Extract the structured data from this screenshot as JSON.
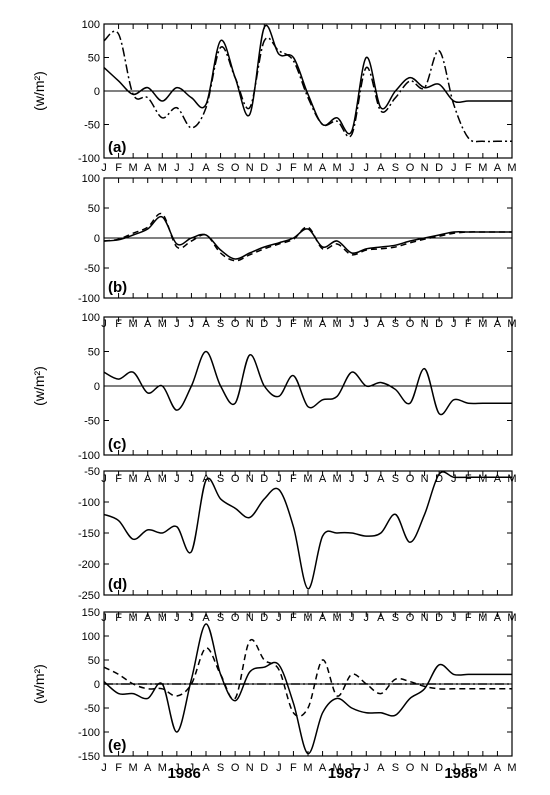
{
  "chart_data": {
    "type": "line",
    "months": [
      "J",
      "F",
      "M",
      "A",
      "M",
      "J",
      "J",
      "A",
      "S",
      "O",
      "N",
      "D",
      "J",
      "F",
      "M",
      "A",
      "M",
      "J",
      "J",
      "A",
      "S",
      "O",
      "N",
      "D",
      "J",
      "F",
      "M",
      "A",
      "M"
    ],
    "years": [
      {
        "label": "1986",
        "month_index": 5.5
      },
      {
        "label": "1987",
        "month_index": 16.5
      },
      {
        "label": "1988",
        "month_index": 24.5
      }
    ],
    "ylabel": "(w/m²)",
    "panels": [
      {
        "tag": "(a)",
        "ylim": [
          -100,
          100
        ],
        "yticks": [
          100,
          50,
          0,
          -50,
          -100
        ],
        "series": [
          {
            "style": "solid",
            "values": [
              35,
              15,
              -5,
              5,
              -15,
              5,
              -10,
              -20,
              75,
              20,
              -35,
              95,
              55,
              50,
              -5,
              -50,
              -40,
              -60,
              50,
              -25,
              0,
              20,
              5,
              10,
              -15,
              -15,
              -15,
              -15,
              -15
            ]
          },
          {
            "style": "dashdot",
            "values": [
              75,
              85,
              -5,
              -10,
              -40,
              -25,
              -55,
              -25,
              65,
              20,
              -25,
              75,
              60,
              45,
              -10,
              -50,
              -45,
              -65,
              35,
              -30,
              -10,
              15,
              5,
              60,
              -20,
              -70,
              -75,
              -75,
              -75
            ]
          }
        ]
      },
      {
        "tag": "(b)",
        "ylim": [
          -100,
          100
        ],
        "yticks": [
          100,
          50,
          0,
          -50,
          -100
        ],
        "series": [
          {
            "style": "solid",
            "values": [
              -5,
              -3,
              5,
              15,
              35,
              -10,
              0,
              5,
              -20,
              -35,
              -25,
              -15,
              -8,
              0,
              15,
              -15,
              -5,
              -25,
              -18,
              -15,
              -12,
              -5,
              0,
              5,
              10,
              10,
              10,
              10,
              10
            ]
          },
          {
            "style": "dashed",
            "values": [
              -5,
              -2,
              8,
              18,
              40,
              -15,
              -5,
              5,
              -25,
              -38,
              -28,
              -18,
              -10,
              -2,
              18,
              -18,
              -10,
              -28,
              -20,
              -18,
              -15,
              -8,
              -2,
              3,
              8,
              10,
              10,
              10,
              10
            ]
          }
        ]
      },
      {
        "tag": "(c)",
        "ylim": [
          -100,
          100
        ],
        "yticks": [
          100,
          50,
          0,
          -50,
          -100
        ],
        "series": [
          {
            "style": "solid",
            "values": [
              20,
              10,
              20,
              -10,
              0,
              -35,
              0,
              50,
              0,
              -25,
              45,
              0,
              -15,
              15,
              -30,
              -20,
              -15,
              20,
              0,
              5,
              -5,
              -25,
              25,
              -40,
              -20,
              -25,
              -25,
              -25,
              -25
            ]
          }
        ]
      },
      {
        "tag": "(d)",
        "ylim": [
          -250,
          -50
        ],
        "yticks": [
          -50,
          -100,
          -150,
          -200,
          -250
        ],
        "series": [
          {
            "style": "solid",
            "values": [
              -120,
              -130,
              -160,
              -145,
              -150,
              -140,
              -180,
              -65,
              -95,
              -110,
              -125,
              -95,
              -80,
              -140,
              -240,
              -155,
              -150,
              -150,
              -155,
              -150,
              -120,
              -165,
              -120,
              -55,
              -60,
              -60,
              -60,
              -60,
              -60
            ]
          }
        ]
      },
      {
        "tag": "(e)",
        "ylim": [
          -150,
          150
        ],
        "yticks": [
          150,
          100,
          50,
          0,
          -50,
          -100,
          -150
        ],
        "series": [
          {
            "style": "solid",
            "values": [
              5,
              -20,
              -20,
              -30,
              0,
              -100,
              10,
              125,
              20,
              -35,
              25,
              35,
              40,
              -40,
              -145,
              -60,
              -30,
              -50,
              -60,
              -60,
              -65,
              -30,
              -10,
              40,
              20,
              20,
              20,
              20,
              20
            ]
          },
          {
            "style": "dashed",
            "values": [
              35,
              20,
              0,
              -10,
              -10,
              -25,
              0,
              75,
              20,
              -30,
              90,
              50,
              30,
              -60,
              -50,
              50,
              -25,
              20,
              0,
              -20,
              10,
              5,
              -5,
              -10,
              -10,
              -10,
              -10,
              -10,
              -10
            ]
          },
          {
            "style": "dashdot",
            "values": [
              0,
              0,
              0,
              0,
              0,
              0,
              0,
              0,
              0,
              0,
              0,
              0,
              0,
              0,
              0,
              0,
              0,
              0,
              0,
              0,
              0,
              0,
              0,
              0,
              0,
              0,
              0,
              0,
              0
            ]
          }
        ]
      }
    ]
  }
}
